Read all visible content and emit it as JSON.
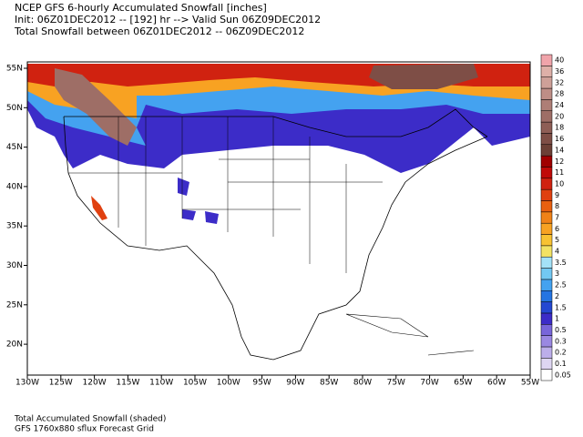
{
  "header": {
    "lines": [
      "NCEP GFS 6-hourly Accumulated Snowfall [inches]",
      "Init: 06Z01DEC2012 -- [192] hr --> Valid Sun 06Z09DEC2012",
      "Total Snowfall between 06Z01DEC2012 -- 06Z09DEC2012"
    ]
  },
  "map": {
    "lon_labels": [
      "130W",
      "125W",
      "120W",
      "115W",
      "110W",
      "105W",
      "100W",
      "95W",
      "90W",
      "85W",
      "80W",
      "75W",
      "70W",
      "65W",
      "60W",
      "55W"
    ],
    "lat_labels": [
      "55N",
      "50N",
      "45N",
      "40N",
      "35N",
      "30N",
      "25N",
      "20N"
    ]
  },
  "colorbar": {
    "labels": [
      "0.05",
      "0.1",
      "0.2",
      "0.3",
      "0.5",
      "1",
      "1.5",
      "2",
      "2.5",
      "3",
      "3.5",
      "4",
      "5",
      "6",
      "7",
      "8",
      "9",
      "10",
      "11",
      "12",
      "14",
      "16",
      "18",
      "20",
      "24",
      "28",
      "32",
      "36",
      "40"
    ],
    "colors": [
      "#ffffff",
      "#ded6f2",
      "#bcaeea",
      "#9a88e2",
      "#7866da",
      "#3c2cc8",
      "#2448d2",
      "#2474e2",
      "#44a2f0",
      "#72c8f2",
      "#a4e2f8",
      "#f2e264",
      "#f8c232",
      "#f8a222",
      "#f08218",
      "#e86010",
      "#e04010",
      "#d02210",
      "#c00a08",
      "#a00000",
      "#6c4036",
      "#7e4e46",
      "#8e5e56",
      "#9e6e66",
      "#ae7e76",
      "#be8e86",
      "#cea098",
      "#deb0a8",
      "#f0a4aa"
    ]
  },
  "footer": {
    "lines": [
      "Total Accumulated Snowfall (shaded)",
      "GFS 1760x880 sflux Forecast Grid"
    ]
  }
}
